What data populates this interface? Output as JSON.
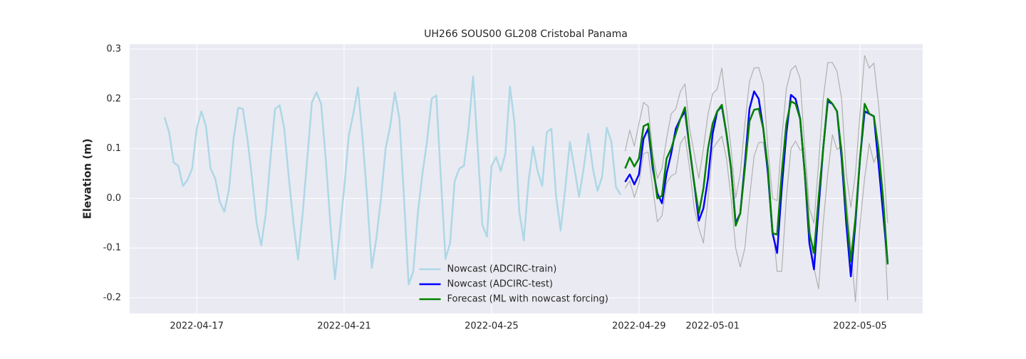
{
  "chart_data": {
    "type": "line",
    "title": "UH266 SOUS00 GL208 Cristobal Panama",
    "y_label": "Elevation (m)",
    "xlim": [
      19097.18,
      19118.7
    ],
    "xticks": [
      {
        "value": 19099,
        "label": "2022-04-17"
      },
      {
        "value": 19103,
        "label": "2022-04-21"
      },
      {
        "value": 19107,
        "label": "2022-04-25"
      },
      {
        "value": 19111,
        "label": "2022-04-29"
      },
      {
        "value": 19113,
        "label": "2022-05-01"
      },
      {
        "value": 19117,
        "label": "2022-05-05"
      }
    ],
    "ylim": [
      -0.2315,
      0.31
    ],
    "yticks": [
      -0.2,
      -0.1,
      {
        "value": 0,
        "label": "0.0"
      },
      0.1,
      0.2,
      0.3
    ],
    "grid": true,
    "legend": "lower center",
    "series": [
      {
        "name": "Nowcast (ADCIRC-train)",
        "color": "#add8e6",
        "width": 2.5,
        "x": [
          19098.125,
          19098.25,
          19098.375,
          19098.5,
          19098.625,
          19098.75,
          19098.875,
          19099,
          19099.125,
          19099.25,
          19099.375,
          19099.5,
          19099.625,
          19099.75,
          19099.875,
          19100,
          19100.125,
          19100.25,
          19100.375,
          19100.5,
          19100.625,
          19100.75,
          19100.875,
          19101,
          19101.125,
          19101.25,
          19101.375,
          19101.5,
          19101.625,
          19101.75,
          19101.875,
          19102,
          19102.125,
          19102.25,
          19102.375,
          19102.5,
          19102.625,
          19102.75,
          19102.875,
          19103,
          19103.125,
          19103.25,
          19103.375,
          19103.5,
          19103.625,
          19103.75,
          19103.875,
          19104,
          19104.125,
          19104.25,
          19104.375,
          19104.5,
          19104.625,
          19104.75,
          19104.875,
          19105,
          19105.125,
          19105.25,
          19105.375,
          19105.5,
          19105.625,
          19105.75,
          19105.875,
          19106,
          19106.125,
          19106.25,
          19106.375,
          19106.5,
          19106.625,
          19106.75,
          19106.875,
          19107,
          19107.125,
          19107.25,
          19107.375,
          19107.5,
          19107.625,
          19107.75,
          19107.875,
          19108,
          19108.125,
          19108.25,
          19108.375,
          19108.5,
          19108.625,
          19108.75,
          19108.875,
          19109,
          19109.125,
          19109.25,
          19109.375,
          19109.5,
          19109.625,
          19109.75,
          19109.875,
          19110,
          19110.125,
          19110.25,
          19110.375,
          19110.5
        ],
        "values": [
          0.163,
          0.133,
          0.072,
          0.065,
          0.025,
          0.037,
          0.06,
          0.14,
          0.175,
          0.145,
          0.06,
          0.04,
          -0.007,
          -0.027,
          0.018,
          0.12,
          0.182,
          0.18,
          0.12,
          0.04,
          -0.05,
          -0.095,
          -0.03,
          0.08,
          0.18,
          0.187,
          0.14,
          0.04,
          -0.05,
          -0.123,
          -0.03,
          0.08,
          0.193,
          0.213,
          0.19,
          0.08,
          -0.05,
          -0.163,
          -0.07,
          0.02,
          0.125,
          0.17,
          0.223,
          0.12,
          0.0,
          -0.14,
          -0.08,
          0.0,
          0.1,
          0.145,
          0.213,
          0.16,
          0.0,
          -0.173,
          -0.148,
          -0.03,
          0.05,
          0.115,
          0.2,
          0.207,
          0.04,
          -0.122,
          -0.09,
          0.035,
          0.06,
          0.065,
          0.14,
          0.245,
          0.1,
          -0.053,
          -0.077,
          0.065,
          0.083,
          0.055,
          0.09,
          0.225,
          0.15,
          -0.025,
          -0.085,
          0.03,
          0.104,
          0.055,
          0.025,
          0.133,
          0.14,
          0.005,
          -0.065,
          0.02,
          0.113,
          0.06,
          0.003,
          0.06,
          0.13,
          0.06,
          0.015,
          0.043,
          0.142,
          0.115,
          0.023,
          0.007
        ]
      },
      {
        "color": "#b0b0b0",
        "width": 1.2,
        "x": [
          19110.625,
          19110.75,
          19110.875,
          19111,
          19111.125,
          19111.25,
          19111.375,
          19111.5,
          19111.625,
          19111.75,
          19111.875,
          19112,
          19112.125,
          19112.25,
          19112.375,
          19112.5,
          19112.625,
          19112.75,
          19112.875,
          19113,
          19113.125,
          19113.25,
          19113.375,
          19113.5,
          19113.625,
          19113.75,
          19113.875,
          19114,
          19114.125,
          19114.25,
          19114.375,
          19114.5,
          19114.625,
          19114.75,
          19114.875,
          19115,
          19115.125,
          19115.25,
          19115.375,
          19115.5,
          19115.625,
          19115.75,
          19115.875,
          19116,
          19116.125,
          19116.25,
          19116.375,
          19116.5,
          19116.625,
          19116.75,
          19116.875,
          19117,
          19117.125,
          19117.25,
          19117.375,
          19117.5,
          19117.625,
          19117.75
        ],
        "values": [
          0.095,
          0.137,
          0.105,
          0.15,
          0.193,
          0.185,
          0.09,
          0.04,
          0.06,
          0.12,
          0.17,
          0.18,
          0.215,
          0.23,
          0.14,
          0.09,
          0.04,
          0.1,
          0.17,
          0.21,
          0.22,
          0.262,
          0.18,
          0.1,
          0.0,
          0.05,
          0.15,
          0.235,
          0.262,
          0.263,
          0.23,
          0.1,
          0.0,
          -0.005,
          0.12,
          0.22,
          0.258,
          0.267,
          0.24,
          0.1,
          -0.02,
          -0.05,
          0.07,
          0.2,
          0.273,
          0.273,
          0.255,
          0.2,
          0.05,
          -0.018,
          0.05,
          0.17,
          0.287,
          0.262,
          0.272,
          0.19,
          0.08,
          -0.05
        ]
      },
      {
        "color": "#b0b0b0",
        "width": 1.2,
        "x": [
          19110.625,
          19110.75,
          19110.875,
          19111,
          19111.125,
          19111.25,
          19111.375,
          19111.5,
          19111.625,
          19111.75,
          19111.875,
          19112,
          19112.125,
          19112.25,
          19112.375,
          19112.5,
          19112.625,
          19112.75,
          19112.875,
          19113,
          19113.125,
          19113.25,
          19113.375,
          19113.5,
          19113.625,
          19113.75,
          19113.875,
          19114,
          19114.125,
          19114.25,
          19114.375,
          19114.5,
          19114.625,
          19114.75,
          19114.875,
          19115,
          19115.125,
          19115.25,
          19115.375,
          19115.5,
          19115.625,
          19115.75,
          19115.875,
          19116,
          19116.125,
          19116.25,
          19116.375,
          19116.5,
          19116.625,
          19116.75,
          19116.875,
          19117,
          19117.125,
          19117.25,
          19117.375,
          19117.5,
          19117.625,
          19117.75
        ],
        "values": [
          0.02,
          0.035,
          0.002,
          0.03,
          0.09,
          0.093,
          0.02,
          -0.047,
          -0.035,
          0.03,
          0.045,
          0.05,
          0.11,
          0.125,
          0.06,
          -0.02,
          -0.06,
          -0.09,
          0.0,
          0.1,
          0.113,
          0.125,
          0.08,
          0.0,
          -0.1,
          -0.138,
          -0.1,
          0.0,
          0.085,
          0.112,
          0.113,
          0.05,
          -0.05,
          -0.147,
          -0.147,
          0.0,
          0.1,
          0.115,
          0.097,
          0.1,
          -0.05,
          -0.14,
          -0.182,
          -0.05,
          0.05,
          0.128,
          0.098,
          0.106,
          0.0,
          -0.1,
          -0.208,
          -0.05,
          0.04,
          0.11,
          0.072,
          0.095,
          0.0,
          -0.205
        ]
      },
      {
        "name": "Nowcast (ADCIRC-test)",
        "color": "#0000ff",
        "width": 2.5,
        "x": [
          19110.625,
          19110.75,
          19110.875,
          19111,
          19111.125,
          19111.25,
          19111.375,
          19111.5,
          19111.625,
          19111.75,
          19111.875,
          19112,
          19112.125,
          19112.25,
          19112.375,
          19112.5,
          19112.625,
          19112.75,
          19112.875,
          19113,
          19113.125,
          19113.25,
          19113.375,
          19113.5,
          19113.625,
          19113.75,
          19113.875,
          19114,
          19114.125,
          19114.25,
          19114.375,
          19114.5,
          19114.625,
          19114.75,
          19114.875,
          19115,
          19115.125,
          19115.25,
          19115.375,
          19115.5,
          19115.625,
          19115.75,
          19115.875,
          19116,
          19116.125,
          19116.25,
          19116.375,
          19116.5,
          19116.625,
          19116.75,
          19116.875,
          19117,
          19117.125,
          19117.25,
          19117.375,
          19117.5,
          19117.625,
          19117.75
        ],
        "values": [
          0.033,
          0.048,
          0.028,
          0.048,
          0.12,
          0.14,
          0.06,
          0.01,
          -0.01,
          0.05,
          0.09,
          0.14,
          0.16,
          0.175,
          0.1,
          0.03,
          -0.045,
          -0.02,
          0.04,
          0.13,
          0.175,
          0.185,
          0.13,
          0.06,
          -0.05,
          -0.03,
          0.07,
          0.18,
          0.215,
          0.2,
          0.14,
          0.05,
          -0.07,
          -0.11,
          0.02,
          0.13,
          0.208,
          0.2,
          0.16,
          0.05,
          -0.09,
          -0.143,
          -0.02,
          0.1,
          0.195,
          0.19,
          0.175,
          0.08,
          -0.05,
          -0.157,
          -0.05,
          0.08,
          0.175,
          0.17,
          0.165,
          0.07,
          -0.03,
          -0.13
        ]
      },
      {
        "name": "Forecast (ML with nowcast forcing)",
        "color": "#008000",
        "width": 2.5,
        "x": [
          19110.625,
          19110.75,
          19110.875,
          19111,
          19111.125,
          19111.25,
          19111.375,
          19111.5,
          19111.625,
          19111.75,
          19111.875,
          19112,
          19112.125,
          19112.25,
          19112.375,
          19112.5,
          19112.625,
          19112.75,
          19112.875,
          19113,
          19113.125,
          19113.25,
          19113.375,
          19113.5,
          19113.625,
          19113.75,
          19113.875,
          19114,
          19114.125,
          19114.25,
          19114.375,
          19114.5,
          19114.625,
          19114.75,
          19114.875,
          19115,
          19115.125,
          19115.25,
          19115.375,
          19115.5,
          19115.625,
          19115.75,
          19115.875,
          19116,
          19116.125,
          19116.25,
          19116.375,
          19116.5,
          19116.625,
          19116.75,
          19116.875,
          19117,
          19117.125,
          19117.25,
          19117.375,
          19117.5,
          19117.625,
          19117.75
        ],
        "values": [
          0.06,
          0.082,
          0.064,
          0.08,
          0.145,
          0.15,
          0.07,
          0.0,
          0.005,
          0.08,
          0.1,
          0.13,
          0.16,
          0.183,
          0.1,
          0.03,
          -0.03,
          0.02,
          0.1,
          0.15,
          0.175,
          0.188,
          0.13,
          0.06,
          -0.055,
          -0.03,
          0.06,
          0.155,
          0.178,
          0.18,
          0.14,
          0.06,
          -0.07,
          -0.073,
          0.05,
          0.15,
          0.195,
          0.19,
          0.16,
          0.05,
          -0.07,
          -0.11,
          0.0,
          0.1,
          0.2,
          0.19,
          0.175,
          0.09,
          -0.03,
          -0.127,
          -0.04,
          0.08,
          0.19,
          0.17,
          0.165,
          0.1,
          0.0,
          -0.133
        ]
      }
    ]
  }
}
